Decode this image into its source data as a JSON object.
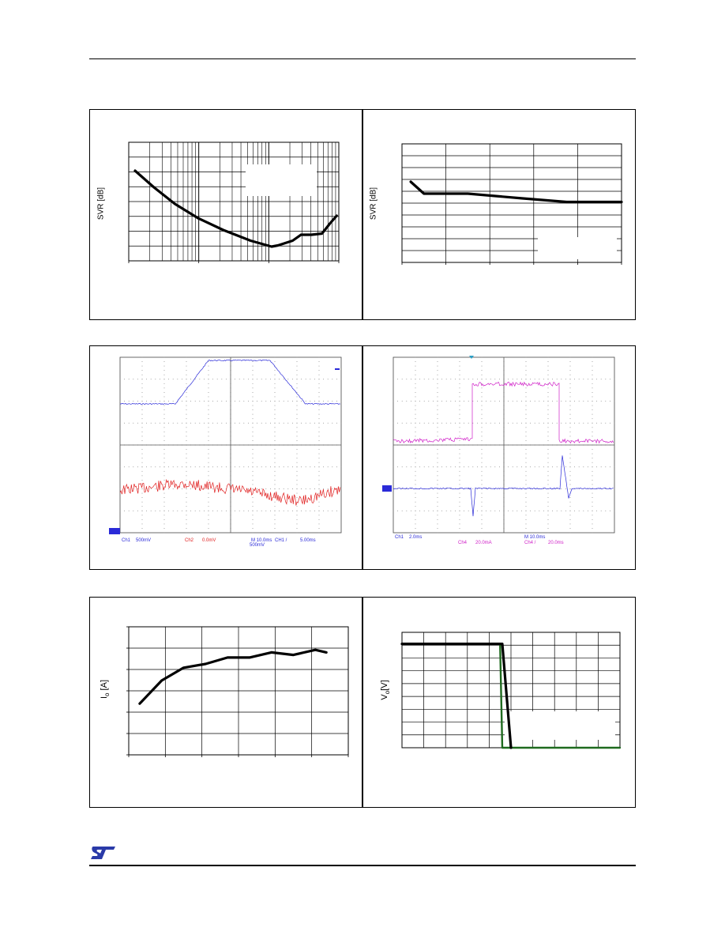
{
  "header": {},
  "row1": {
    "left": {
      "ylabel": "SVR [dB]"
    },
    "right": {
      "ylabel": "SVR [dB]"
    }
  },
  "row2": {
    "left": {
      "readout": [
        "Ch1",
        "500mV",
        "Ch2",
        "0.0mV",
        "M 10.0ms",
        "CH1 /",
        "500mV",
        "5.00ms"
      ]
    },
    "right": {
      "readout": [
        "Ch1",
        "2.0ms",
        "Ch4",
        "20.0mA",
        "M 10.0ms",
        "Ch4 /",
        "20.0ms"
      ]
    }
  },
  "row3": {
    "left": {
      "ylabel_main": "I",
      "ylabel_sub": "o",
      "ylabel_unit": " [A]"
    },
    "right": {
      "ylabel_main": "V",
      "ylabel_sub": "o",
      "ylabel_unit": "[V]"
    }
  },
  "footer": {
    "logo_text": "ST"
  },
  "colors": {
    "ch1": "#2a2ad8",
    "ch2": "#e02020",
    "ch4": "#d020c8",
    "green": "#1f6a1f"
  },
  "chart_data": [
    {
      "type": "line",
      "panel": "row1-left",
      "xscale": "log",
      "ylabel": "SVR [dB]",
      "series": [
        {
          "values_rel": [
            [
              0.03,
              0.24
            ],
            [
              0.12,
              0.38
            ],
            [
              0.22,
              0.52
            ],
            [
              0.33,
              0.64
            ],
            [
              0.45,
              0.74
            ],
            [
              0.58,
              0.83
            ],
            [
              0.68,
              0.88
            ],
            [
              0.71,
              0.87
            ],
            [
              0.78,
              0.83
            ],
            [
              0.82,
              0.78
            ],
            [
              0.87,
              0.78
            ],
            [
              0.92,
              0.77
            ],
            [
              0.96,
              0.68
            ],
            [
              0.99,
              0.62
            ]
          ]
        }
      ]
    },
    {
      "type": "line",
      "panel": "row1-right",
      "ylabel": "SVR [dB]",
      "series": [
        {
          "values_rel": [
            [
              0.04,
              0.32
            ],
            [
              0.1,
              0.42
            ],
            [
              0.3,
              0.42
            ],
            [
              0.55,
              0.46
            ],
            [
              0.75,
              0.49
            ],
            [
              1.0,
              0.49
            ]
          ]
        }
      ]
    },
    {
      "type": "line",
      "panel": "row3-left",
      "ylabel": "Io [A]",
      "series": [
        {
          "values_rel": [
            [
              0.05,
              0.6
            ],
            [
              0.15,
              0.42
            ],
            [
              0.25,
              0.32
            ],
            [
              0.35,
              0.29
            ],
            [
              0.45,
              0.24
            ],
            [
              0.55,
              0.24
            ],
            [
              0.65,
              0.2
            ],
            [
              0.75,
              0.22
            ],
            [
              0.85,
              0.18
            ],
            [
              0.9,
              0.2
            ]
          ]
        }
      ]
    },
    {
      "type": "line",
      "panel": "row3-right",
      "ylabel": "Vo[V]",
      "series": [
        {
          "name": "black",
          "values_rel": [
            [
              0.0,
              0.1
            ],
            [
              0.46,
              0.1
            ],
            [
              0.5,
              1.0
            ]
          ]
        },
        {
          "name": "green",
          "values_rel": [
            [
              0.45,
              0.1
            ],
            [
              0.46,
              1.0
            ],
            [
              1.0,
              1.0
            ]
          ]
        }
      ]
    }
  ]
}
